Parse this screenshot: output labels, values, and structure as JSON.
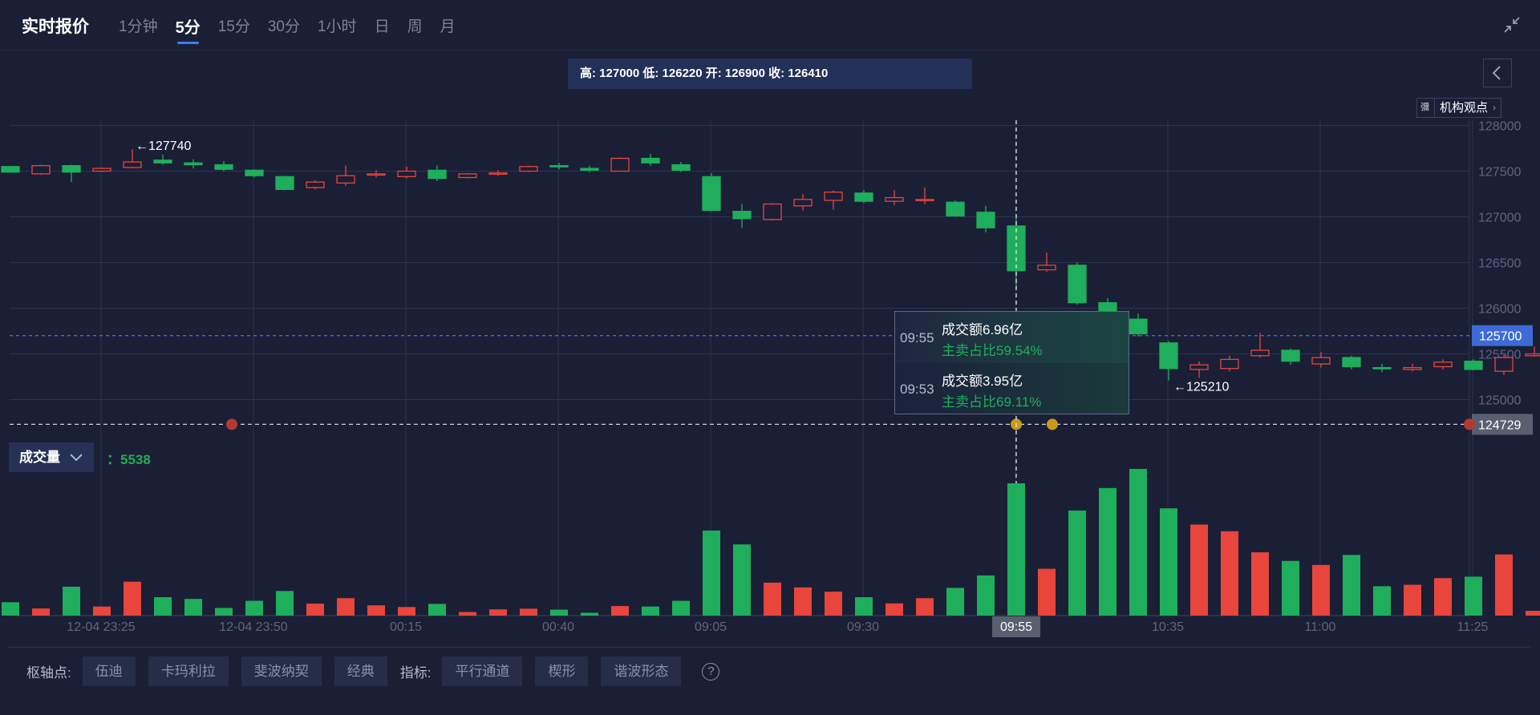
{
  "header": {
    "title": "实时报价",
    "tabs": [
      {
        "label": "1分钟",
        "active": false
      },
      {
        "label": "5分",
        "active": true
      },
      {
        "label": "15分",
        "active": false
      },
      {
        "label": "30分",
        "active": false
      },
      {
        "label": "1小时",
        "active": false
      },
      {
        "label": "日",
        "active": false
      },
      {
        "label": "周",
        "active": false
      },
      {
        "label": "月",
        "active": false
      }
    ]
  },
  "ohlc_bar": {
    "text": "高: 127000 低: 126220 开: 126900 收: 126410"
  },
  "institution": {
    "logo_text": "彌",
    "label": "机构观点"
  },
  "tooltip": {
    "rows": [
      {
        "time": "09:55",
        "amount": "成交额6.96亿",
        "ratio": "主卖占比59.54%"
      },
      {
        "time": "09:53",
        "amount": "成交额3.95亿",
        "ratio": "主卖占比69.11%"
      }
    ]
  },
  "volume": {
    "button_label": "成交量",
    "value": "：5538"
  },
  "toolbar": {
    "pivot_label": "枢轴点:",
    "pivot_options": [
      "伍迪",
      "卡玛利拉",
      "斐波纳契",
      "经典"
    ],
    "indicator_label": "指标:",
    "indicator_options": [
      "平行通道",
      "楔形",
      "谐波形态"
    ],
    "help": "?"
  },
  "colors": {
    "up": "#e8453c",
    "down": "#1fae5b",
    "accent": "#3d7bf2",
    "background": "#1a1f36"
  },
  "chart_data": {
    "type": "candlestick",
    "interval": "5分",
    "y_ticks": [
      128000,
      127500,
      127000,
      126500,
      126000,
      125500,
      125000
    ],
    "ylim": [
      124450,
      128100
    ],
    "x_ticks": [
      "12-04 23:25",
      "12-04 23:50",
      "00:15",
      "00:40",
      "09:05",
      "09:30",
      "09:55",
      "10:35",
      "11:00",
      "11:25"
    ],
    "price_lines": [
      {
        "value": 125700,
        "label": "125700",
        "style": "dashed-blue"
      },
      {
        "value": 124729,
        "label": "124729",
        "style": "dashed-white"
      }
    ],
    "high_annotation": {
      "value": 127740,
      "label": "←127740"
    },
    "low_annotation": {
      "value": 125210,
      "label": "←125210"
    },
    "crosshair_x_label": "09:55",
    "candles": [
      [
        127550,
        127490,
        127560,
        127480
      ],
      [
        127470,
        127560,
        127570,
        127460
      ],
      [
        127560,
        127490,
        127570,
        127380
      ],
      [
        127500,
        127530,
        127540,
        127490
      ],
      [
        127540,
        127600,
        127740,
        127530
      ],
      [
        127620,
        127590,
        127680,
        127570
      ],
      [
        127590,
        127570,
        127630,
        127530
      ],
      [
        127570,
        127520,
        127610,
        127500
      ],
      [
        127510,
        127450,
        127520,
        127430
      ],
      [
        127440,
        127300,
        127450,
        127290
      ],
      [
        127320,
        127380,
        127400,
        127300
      ],
      [
        127370,
        127450,
        127560,
        127340
      ],
      [
        127460,
        127470,
        127510,
        127430
      ],
      [
        127440,
        127500,
        127550,
        127420
      ],
      [
        127510,
        127420,
        127560,
        127390
      ],
      [
        127430,
        127470,
        127480,
        127420
      ],
      [
        127470,
        127480,
        127510,
        127450
      ],
      [
        127500,
        127550,
        127560,
        127490
      ],
      [
        127560,
        127550,
        127590,
        127520
      ],
      [
        127530,
        127510,
        127560,
        127490
      ],
      [
        127500,
        127640,
        127650,
        127500
      ],
      [
        127640,
        127590,
        127690,
        127560
      ],
      [
        127570,
        127510,
        127600,
        127490
      ],
      [
        127440,
        127070,
        127480,
        127060
      ],
      [
        127060,
        126980,
        127140,
        126880
      ],
      [
        126970,
        127140,
        127150,
        126960
      ],
      [
        127120,
        127190,
        127250,
        127070
      ],
      [
        127180,
        127270,
        127290,
        127080
      ],
      [
        127260,
        127170,
        127290,
        127150
      ],
      [
        127170,
        127210,
        127290,
        127130
      ],
      [
        127190,
        127190,
        127320,
        127140
      ],
      [
        127160,
        127010,
        127180,
        127000
      ],
      [
        127050,
        126880,
        127120,
        126830
      ],
      [
        126900,
        126410,
        127000,
        126220
      ],
      [
        126420,
        126470,
        126610,
        126400
      ],
      [
        126470,
        126060,
        126500,
        126040
      ],
      [
        126060,
        125870,
        126110,
        125840
      ],
      [
        125880,
        125720,
        125940,
        125690
      ],
      [
        125620,
        125340,
        125640,
        125210
      ],
      [
        125330,
        125380,
        125420,
        125240
      ],
      [
        125340,
        125440,
        125480,
        125310
      ],
      [
        125480,
        125540,
        125730,
        125460
      ],
      [
        125540,
        125420,
        125560,
        125380
      ],
      [
        125390,
        125460,
        125520,
        125350
      ],
      [
        125460,
        125360,
        125480,
        125330
      ],
      [
        125350,
        125340,
        125390,
        125300
      ],
      [
        125330,
        125350,
        125390,
        125310
      ],
      [
        125360,
        125410,
        125440,
        125330
      ],
      [
        125420,
        125330,
        125440,
        125320
      ],
      [
        125310,
        125460,
        125490,
        125270
      ],
      [
        125480,
        125500,
        125580,
        125470
      ]
    ],
    "volume_series": [
      560,
      300,
      1210,
      380,
      1420,
      770,
      700,
      320,
      620,
      1030,
      500,
      730,
      430,
      360,
      490,
      150,
      260,
      290,
      250,
      120,
      400,
      380,
      620,
      3560,
      2980,
      1380,
      1180,
      1000,
      770,
      510,
      730,
      1160,
      1680,
      5538,
      1960,
      4400,
      5340,
      6140,
      4490,
      3810,
      3530,
      2650,
      2290,
      2120,
      2540,
      1230,
      1290,
      1570,
      1630,
      2560,
      200
    ]
  }
}
